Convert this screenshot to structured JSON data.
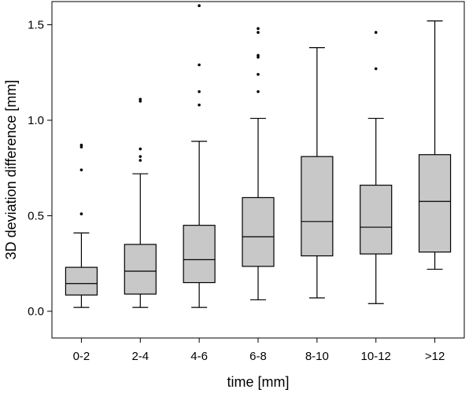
{
  "chart_data": {
    "type": "box",
    "xlabel": "time [mm]",
    "ylabel": "3D deviation difference [mm]",
    "ylim": [
      -0.1,
      1.6
    ],
    "yticks": [
      "0.0",
      "0.5",
      "1.0",
      "1.5"
    ],
    "ytick_values": [
      0.0,
      0.5,
      1.0,
      1.5
    ],
    "box_color": "#c8c8c8",
    "grid": false,
    "categories": [
      "0-2",
      "2-4",
      "4-6",
      "6-8",
      "8-10",
      "10-12",
      ">12"
    ],
    "boxes": [
      {
        "whisker_low": 0.02,
        "q1": 0.085,
        "median": 0.145,
        "q3": 0.23,
        "whisker_high": 0.41,
        "outliers": [
          0.51,
          0.74,
          0.86,
          0.87
        ]
      },
      {
        "whisker_low": 0.02,
        "q1": 0.09,
        "median": 0.21,
        "q3": 0.35,
        "whisker_high": 0.72,
        "outliers": [
          0.79,
          0.81,
          0.85,
          1.1,
          1.11
        ]
      },
      {
        "whisker_low": 0.02,
        "q1": 0.15,
        "median": 0.27,
        "q3": 0.45,
        "whisker_high": 0.89,
        "outliers": [
          1.08,
          1.15,
          1.29,
          1.6
        ]
      },
      {
        "whisker_low": 0.06,
        "q1": 0.235,
        "median": 0.39,
        "q3": 0.595,
        "whisker_high": 1.01,
        "outliers": [
          1.15,
          1.24,
          1.33,
          1.34,
          1.46,
          1.48
        ]
      },
      {
        "whisker_low": 0.07,
        "q1": 0.29,
        "median": 0.47,
        "q3": 0.81,
        "whisker_high": 1.38,
        "outliers": []
      },
      {
        "whisker_low": 0.04,
        "q1": 0.3,
        "median": 0.44,
        "q3": 0.66,
        "whisker_high": 1.01,
        "outliers": [
          1.27,
          1.46
        ]
      },
      {
        "whisker_low": 0.22,
        "q1": 0.31,
        "median": 0.575,
        "q3": 0.82,
        "whisker_high": 1.52,
        "outliers": []
      }
    ]
  }
}
